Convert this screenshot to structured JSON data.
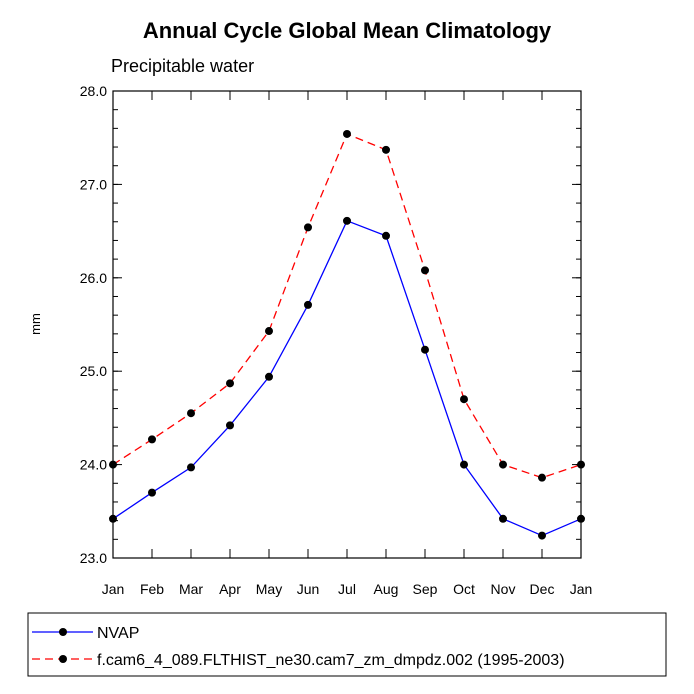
{
  "chart_data": {
    "type": "line",
    "title": "Annual Cycle Global Mean Climatology",
    "subtitle": "Precipitable water",
    "xlabel": "",
    "ylabel": "mm",
    "categories": [
      "Jan",
      "Feb",
      "Mar",
      "Apr",
      "May",
      "Jun",
      "Jul",
      "Aug",
      "Sep",
      "Oct",
      "Nov",
      "Dec",
      "Jan"
    ],
    "ylim": [
      23.0,
      28.0
    ],
    "yticks": [
      23.0,
      24.0,
      25.0,
      26.0,
      27.0,
      28.0
    ],
    "ytick_labels": [
      "23.0",
      "24.0",
      "25.0",
      "26.0",
      "27.0",
      "28.0"
    ],
    "grid": false,
    "legend_position": "bottom",
    "series": [
      {
        "name": "NVAP",
        "color": "#0000ff",
        "dash": "solid",
        "values": [
          23.42,
          23.7,
          23.97,
          24.42,
          24.94,
          25.71,
          26.61,
          26.45,
          25.23,
          24.0,
          23.42,
          23.24,
          23.42
        ]
      },
      {
        "name": "f.cam6_4_089.FLTHIST_ne30.cam7_zm_dmpdz.002 (1995-2003)",
        "color": "#ff0000",
        "dash": "dashed",
        "values": [
          24.0,
          24.27,
          24.55,
          24.87,
          25.43,
          26.54,
          27.54,
          27.37,
          26.08,
          24.7,
          24.0,
          23.86,
          24.0
        ]
      }
    ]
  }
}
